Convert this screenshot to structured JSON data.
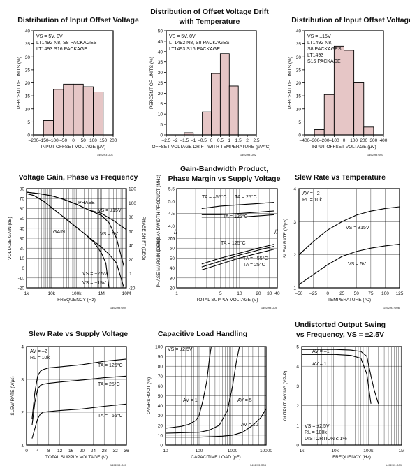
{
  "chart_data": [
    {
      "type": "bar",
      "title": "Distribution of Input Offset Voltage",
      "xlabel": "INPUT OFFSET VOLTAGE (µV)",
      "ylabel": "PERCENT OF UNITS (%)",
      "xlim": [
        -200,
        200
      ],
      "ylim": [
        0,
        40
      ],
      "xticks": [
        -200,
        -150,
        -100,
        -50,
        0,
        50,
        100,
        150,
        200
      ],
      "yticks": [
        0,
        5,
        10,
        15,
        20,
        25,
        30,
        35,
        40
      ],
      "bin_edges": [
        -150,
        -100,
        -50,
        0,
        50,
        100,
        150
      ],
      "values": [
        5.5,
        17.5,
        19.5,
        19.5,
        18.5,
        16.5
      ],
      "notes": [
        "VS = 5V, 0V",
        "LT1492 N8, S8 PACKAGES",
        "LT1493 S16 PACKAGE"
      ],
      "code": "1492/93 G01"
    },
    {
      "type": "bar",
      "title": "Distribution of Offset Voltage Drift with Temperature",
      "title_lines": [
        "Distribution of Offset Voltage Drift",
        "with Temperature"
      ],
      "xlabel": "OFFSET VOLTAGE DRIFT WITH TEMPERATURE (µV/°C)",
      "ylabel": "PERCENT OF UNITS (%)",
      "xlim": [
        -2.5,
        2.5
      ],
      "ylim": [
        0,
        50
      ],
      "xticks": [
        -2.5,
        -2,
        -1.5,
        -1,
        -0.5,
        0,
        0.5,
        1,
        1.5,
        2,
        2.5
      ],
      "yticks": [
        0,
        5,
        10,
        15,
        20,
        25,
        30,
        35,
        40,
        45,
        50
      ],
      "bin_edges": [
        -1.5,
        -1,
        -0.5,
        0,
        0.5,
        1,
        1.5
      ],
      "values": [
        1,
        0,
        11,
        29.5,
        39,
        23.5
      ],
      "notes": [
        "VS = 5V, 0V",
        "LT1492 N8, S8 PACKAGES",
        "LT1493 S16 PACKAGE"
      ],
      "code": "1492/93 G02"
    },
    {
      "type": "bar",
      "title": "Distribution of Input Offset Voltage",
      "xlabel": "INPUT OFFSET VOLTAGE (µV)",
      "ylabel": "PERCENT OF UNITS (%)",
      "xlim": [
        -400,
        400
      ],
      "ylim": [
        0,
        40
      ],
      "xticks": [
        -400,
        -300,
        -200,
        -100,
        0,
        100,
        200,
        300,
        400
      ],
      "yticks": [
        0,
        5,
        10,
        15,
        20,
        25,
        30,
        35,
        40
      ],
      "bin_edges": [
        -300,
        -200,
        -100,
        0,
        100,
        200,
        300
      ],
      "values": [
        2,
        15.5,
        34,
        32.5,
        20,
        3
      ],
      "notes": [
        "VS = ±15V",
        "LT1492 N8,",
        "S8 PACKAGES",
        "LT1493",
        "S16 PACKAGE"
      ],
      "code": "1492/93 G03"
    },
    {
      "type": "line",
      "title": "Voltage Gain, Phase vs Frequency",
      "xlabel": "FREQUENCY (Hz)",
      "ylabel": "VOLTAGE GAIN (dB)",
      "y2label": "PHASE SHIFT (DEG)",
      "xscale": "log",
      "xlim": [
        1000,
        10000000
      ],
      "ylim": [
        -20,
        80
      ],
      "y2lim": [
        -20,
        120
      ],
      "xtick_labels": [
        "1k",
        "10k",
        "100k",
        "1M",
        "10M"
      ],
      "yticks": [
        -20,
        -10,
        0,
        10,
        20,
        30,
        40,
        50,
        60,
        70,
        80
      ],
      "y2ticks": [
        -20,
        0,
        20,
        40,
        60,
        80,
        100,
        120
      ],
      "series": [
        {
          "axis": "left",
          "x": [
            1000,
            2000,
            5000,
            10000,
            20000,
            50000,
            100000,
            200000,
            500000,
            1000000,
            2000000,
            4000000,
            8000000
          ],
          "y": [
            75,
            73,
            67,
            61,
            55,
            47,
            41,
            35,
            27,
            21,
            14,
            5,
            -20
          ]
        },
        {
          "axis": "left",
          "x": [
            1000,
            2000,
            5000,
            10000,
            20000,
            50000,
            100000,
            200000,
            500000,
            1000000,
            1500000,
            2000000
          ],
          "y": [
            75,
            73,
            67,
            61,
            55,
            47,
            41,
            35,
            26,
            15,
            5,
            -20
          ]
        },
        {
          "axis": "right",
          "x": [
            1000,
            3000,
            10000,
            30000,
            100000,
            300000,
            1000000,
            3000000,
            10000000
          ],
          "y": [
            115,
            113,
            110,
            105,
            98,
            90,
            85,
            75,
            62
          ]
        },
        {
          "axis": "right",
          "x": [
            1000,
            3000,
            10000,
            30000,
            100000,
            300000,
            1000000,
            2000000,
            4000000,
            8000000
          ],
          "y": [
            115,
            113,
            110,
            105,
            98,
            90,
            82,
            72,
            50,
            10
          ]
        }
      ],
      "annotations": [
        "PHASE",
        "GAIN",
        "VS = ±15V",
        "VS = 5V",
        "VS = ±2.5V",
        "VS = ±15V"
      ],
      "code": "1492/93 G04"
    },
    {
      "type": "line",
      "title": "Gain-Bandwidth Product, Phase Margin vs Supply Voltage",
      "title_lines": [
        "Gain-Bandwidth Product,",
        "Phase Margin vs Supply Voltage"
      ],
      "xlabel": "TOTAL SUPPLY VOLTAGE (V)",
      "ylabel_top": "GAIN-BANDWIDTH PRODUCT (MHz)",
      "ylabel_bottom": "PHASE MARGIN (DEG)",
      "xscale": "log",
      "xlim": [
        1,
        40
      ],
      "xtick_labels": [
        "1",
        "10",
        "20",
        "30",
        "40"
      ],
      "minor_tick_labels": [
        "5"
      ],
      "top_ylim": [
        3.5,
        5.5
      ],
      "top_yticks": [
        3.5,
        4.0,
        4.5,
        5.0,
        5.5
      ],
      "bottom_ylim": [
        20,
        70
      ],
      "bottom_yticks": [
        20,
        30,
        40,
        50,
        60,
        70
      ],
      "gbw_series": [
        {
          "x": [
            2.5,
            5,
            10,
            20,
            36
          ],
          "y": [
            4.7,
            4.8,
            4.85,
            4.9,
            4.95
          ]
        },
        {
          "x": [
            2.5,
            5,
            10,
            20,
            36
          ],
          "y": [
            4.45,
            4.45,
            4.5,
            4.55,
            4.6
          ]
        },
        {
          "x": [
            2.5,
            5,
            10,
            20,
            36
          ],
          "y": [
            4.35,
            4.35,
            4.35,
            4.4,
            4.45
          ]
        }
      ],
      "pm_series": [
        {
          "x": [
            2.5,
            5,
            10,
            20,
            36
          ],
          "y": [
            44,
            50,
            55,
            60,
            64
          ]
        },
        {
          "x": [
            2.5,
            5,
            10,
            20,
            36
          ],
          "y": [
            41,
            47,
            53,
            58,
            62
          ]
        },
        {
          "x": [
            2.5,
            5,
            10,
            20,
            36
          ],
          "y": [
            38,
            44,
            50,
            55,
            59
          ]
        }
      ],
      "annotations": [
        "TA = –55°C",
        "TA = 25°C",
        "TA = 125°C",
        "TA = 125°C",
        "TA = –55°C",
        "TA = 25°C"
      ],
      "code": "1492/93 G05"
    },
    {
      "type": "line",
      "title": "Slew Rate vs Temperature",
      "xlabel": "TEMPERATURE (°C)",
      "ylabel": "SLEW RATE (V/µs)",
      "xlim": [
        -50,
        125
      ],
      "ylim": [
        1,
        4
      ],
      "xticks": [
        -50,
        -25,
        0,
        25,
        50,
        75,
        100,
        125
      ],
      "yticks": [
        1,
        2,
        3,
        4
      ],
      "series": [
        {
          "x": [
            -50,
            -25,
            0,
            25,
            50,
            75,
            100,
            125
          ],
          "y": [
            2.0,
            2.4,
            2.75,
            3.0,
            3.2,
            3.32,
            3.4,
            3.45
          ]
        },
        {
          "x": [
            -50,
            -25,
            0,
            25,
            50,
            75,
            100,
            125
          ],
          "y": [
            1.1,
            1.4,
            1.7,
            1.95,
            2.1,
            2.2,
            2.27,
            2.32
          ]
        }
      ],
      "notes": [
        "AV = –2",
        "RL = 10k"
      ],
      "annotations": [
        "VS = ±15V",
        "VS = 5V"
      ],
      "code": "1492/93 G06"
    },
    {
      "type": "line",
      "title": "Slew Rate vs Supply Voltage",
      "xlabel": "TOTAL SUPPLY VOLTAGE (V)",
      "ylabel": "SLEW RATE (V/µs)",
      "xlim": [
        0,
        36
      ],
      "ylim": [
        1,
        4
      ],
      "xticks": [
        0,
        4,
        8,
        12,
        16,
        20,
        24,
        28,
        32,
        36
      ],
      "yticks": [
        1,
        2,
        3,
        4
      ],
      "series": [
        {
          "x": [
            2,
            3,
            4,
            5,
            6,
            8,
            12,
            20,
            28,
            36
          ],
          "y": [
            1.8,
            2.6,
            3.1,
            3.25,
            3.3,
            3.35,
            3.38,
            3.45,
            3.55,
            3.62
          ]
        },
        {
          "x": [
            2,
            3,
            4,
            5,
            6,
            8,
            12,
            20,
            28,
            36
          ],
          "y": [
            1.6,
            2.3,
            2.7,
            2.82,
            2.85,
            2.88,
            2.92,
            2.98,
            3.05,
            3.1
          ]
        },
        {
          "x": [
            2,
            3,
            4,
            5,
            6,
            8,
            12,
            20,
            28,
            36
          ],
          "y": [
            1.2,
            1.5,
            1.8,
            1.95,
            2.0,
            2.02,
            2.05,
            2.1,
            2.18,
            2.25
          ]
        }
      ],
      "notes": [
        "AV = –2",
        "RL = 10k"
      ],
      "annotations": [
        "TA = 125°C",
        "TA = 25°C",
        "TA = –55°C"
      ],
      "code": "1492/93 G07"
    },
    {
      "type": "line",
      "title": "Capacitive Load Handling",
      "xlabel": "CAPACITIVE LOAD (pF)",
      "ylabel": "OVERSHOOT (%)",
      "xscale": "log",
      "xlim": [
        10,
        10000
      ],
      "ylim": [
        0,
        100
      ],
      "xtick_labels": [
        "10",
        "100",
        "1000",
        "10000"
      ],
      "yticks": [
        0,
        10,
        20,
        30,
        40,
        50,
        60,
        70,
        80,
        90,
        100
      ],
      "series": [
        {
          "x": [
            10,
            30,
            50,
            80,
            100,
            130,
            170,
            200,
            230
          ],
          "y": [
            17,
            19,
            21,
            25,
            30,
            45,
            65,
            85,
            100
          ]
        },
        {
          "x": [
            10,
            100,
            200,
            400,
            700,
            1000,
            1300,
            1600
          ],
          "y": [
            12,
            13,
            15,
            20,
            35,
            60,
            85,
            100
          ]
        },
        {
          "x": [
            10,
            100,
            500,
            1000,
            2000,
            4000,
            7000,
            10000
          ],
          "y": [
            8,
            8,
            9,
            10,
            13,
            20,
            28,
            37
          ]
        }
      ],
      "notes": [
        "VS = ±2.5V"
      ],
      "annotations": [
        "AV = 1",
        "AV = 5",
        "AV = 10"
      ],
      "code": "1492/93 G08"
    },
    {
      "type": "line",
      "title": "Undistorted Output Swing vs Frequency, VS = ±2.5V",
      "title_lines": [
        "Undistorted Output Swing",
        "vs Frequency, VS = ±2.5V"
      ],
      "xlabel": "FREQUENCY (Hz)",
      "ylabel": "OUTPUT SWING (VP-P)",
      "xscale": "log",
      "xlim": [
        1000,
        1000000
      ],
      "ylim": [
        0,
        5
      ],
      "xtick_labels": [
        "1k",
        "10k",
        "100k",
        "1M"
      ],
      "yticks": [
        0,
        1,
        2,
        3,
        4,
        5
      ],
      "series": [
        {
          "x": [
            1000,
            10000,
            30000,
            60000,
            90000,
            120000,
            150000,
            200000
          ],
          "y": [
            4.85,
            4.85,
            4.82,
            4.75,
            4.5,
            3.5,
            2.8,
            2.1
          ]
        },
        {
          "x": [
            1000,
            10000,
            30000,
            60000,
            90000,
            120000
          ],
          "y": [
            4.6,
            4.6,
            4.55,
            4.4,
            3.6,
            2.1
          ]
        }
      ],
      "notes": [
        "VS = ±2.5V",
        "RL = 100k",
        "DISTORTION ≤ 1%"
      ],
      "annotations": [
        "AV = –1",
        "AV = 1"
      ],
      "code": "1492/93 G09"
    }
  ]
}
